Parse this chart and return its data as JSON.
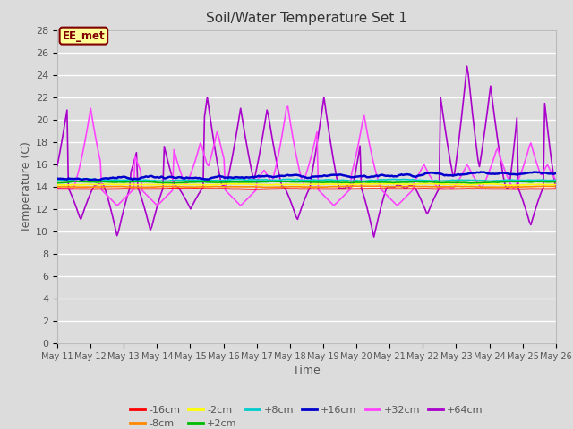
{
  "title": "Soil/Water Temperature Set 1",
  "xlabel": "Time",
  "ylabel": "Temperature (C)",
  "ylim": [
    0,
    28
  ],
  "yticks": [
    0,
    2,
    4,
    6,
    8,
    10,
    12,
    14,
    16,
    18,
    20,
    22,
    24,
    26,
    28
  ],
  "x_tick_labels": [
    "May 11",
    "May 12",
    "May 13",
    "May 14",
    "May 15",
    "May 16",
    "May 17",
    "May 18",
    "May 19",
    "May 20",
    "May 21",
    "May 22",
    "May 23",
    "May 24",
    "May 25",
    "May 26"
  ],
  "bg_color": "#dcdcdc",
  "plot_bg_color": "#dcdcdc",
  "grid_color": "#ffffff",
  "annotation_text": "EE_met",
  "annotation_bg": "#ffff99",
  "annotation_border": "#800000",
  "series_colors": {
    "-16cm": "#ff0000",
    "-8cm": "#ff8800",
    "-2cm": "#ffff00",
    "+2cm": "#00bb00",
    "+8cm": "#00cccc",
    "+16cm": "#0000cc",
    "+32cm": "#ff44ff",
    "+64cm": "#aa00cc"
  }
}
